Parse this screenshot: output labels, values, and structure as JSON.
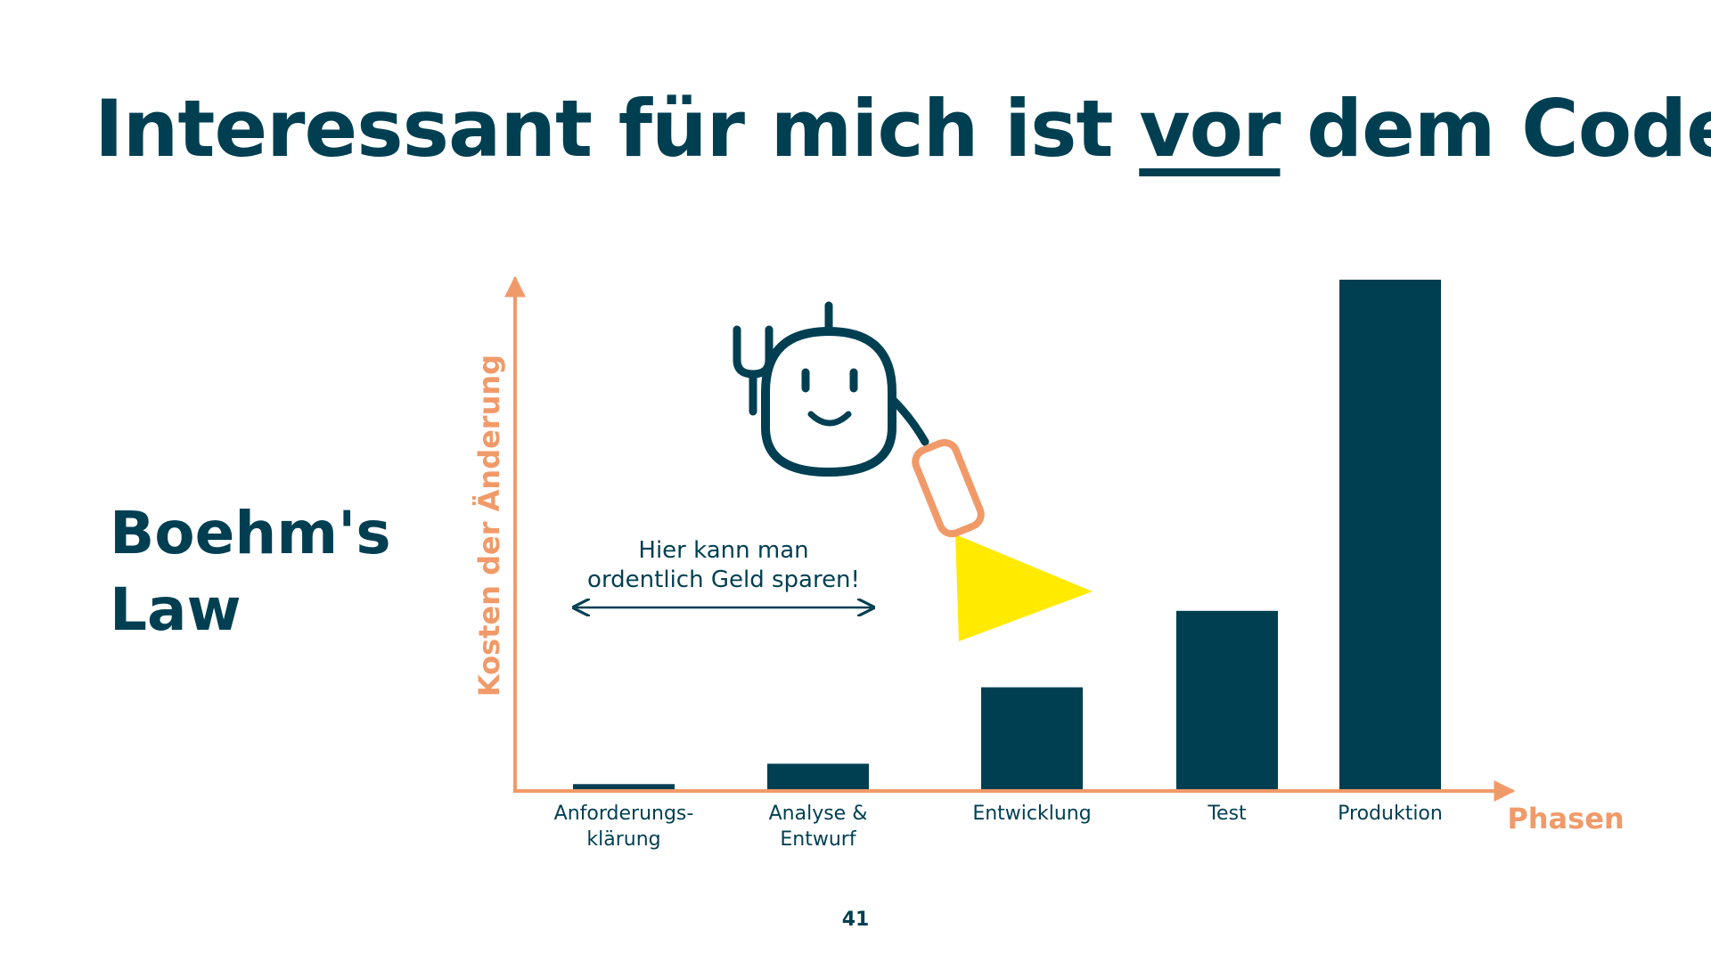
{
  "slide": {
    "title_before": "Interessant für mich ist ",
    "title_underlined": "vor",
    "title_after": " dem Code",
    "side_title_line1": "Boehm's",
    "side_title_line2": "Law",
    "page_number": "41"
  },
  "colors": {
    "primary": "#003F52",
    "accent": "#F19A69",
    "highlight": "#FFEA00"
  },
  "icons": {
    "mascot": "robot-with-flashlight-icon"
  },
  "chart_data": {
    "type": "bar",
    "title": "",
    "xlabel": "Phasen",
    "ylabel": "Kosten der Änderung",
    "categories": [
      "Anforderungs-\nklärung",
      "Analyse &\nEntwurf",
      "Entwicklung",
      "Test",
      "Produktion"
    ],
    "values": [
      1,
      5,
      20,
      35,
      100
    ],
    "ylim": [
      0,
      100
    ],
    "grid": false,
    "annotation": "Hier kann man\nordentlich Geld sparen!"
  }
}
